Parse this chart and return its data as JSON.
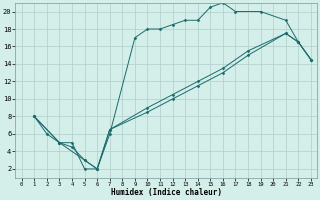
{
  "xlabel": "Humidex (Indice chaleur)",
  "xlim": [
    -0.5,
    23.5
  ],
  "ylim": [
    1,
    21
  ],
  "xticks": [
    0,
    1,
    2,
    3,
    4,
    5,
    6,
    7,
    8,
    9,
    10,
    11,
    12,
    13,
    14,
    15,
    16,
    17,
    18,
    19,
    20,
    21,
    22,
    23
  ],
  "yticks": [
    2,
    4,
    6,
    8,
    10,
    12,
    14,
    16,
    18,
    20
  ],
  "bg_color": "#d4eeea",
  "grid_color": "#b0cccc",
  "line_color": "#1a6b6b",
  "curve1_x": [
    1,
    2,
    3,
    4,
    5,
    6,
    7,
    9,
    10,
    11,
    12,
    13,
    14,
    15,
    16,
    17,
    19,
    21,
    22,
    23
  ],
  "curve1_y": [
    8,
    6,
    5,
    5,
    2,
    2,
    6,
    17,
    18,
    18,
    18.5,
    19,
    19,
    20.5,
    21,
    20,
    20,
    19,
    16.5,
    14.5
  ],
  "curve2_x": [
    1,
    3,
    4,
    5,
    6,
    7,
    10,
    12,
    14,
    16,
    18,
    21,
    22,
    23
  ],
  "curve2_y": [
    8,
    5,
    4.5,
    3,
    2,
    6.5,
    9,
    10.5,
    12,
    13.5,
    15.5,
    17.5,
    16.5,
    14.5
  ],
  "curve3_x": [
    1,
    3,
    5,
    6,
    7,
    10,
    12,
    14,
    16,
    18,
    21,
    22,
    23
  ],
  "curve3_y": [
    8,
    5,
    3,
    2,
    6.5,
    8.5,
    10,
    11.5,
    13,
    15,
    17.5,
    16.5,
    14.5
  ]
}
